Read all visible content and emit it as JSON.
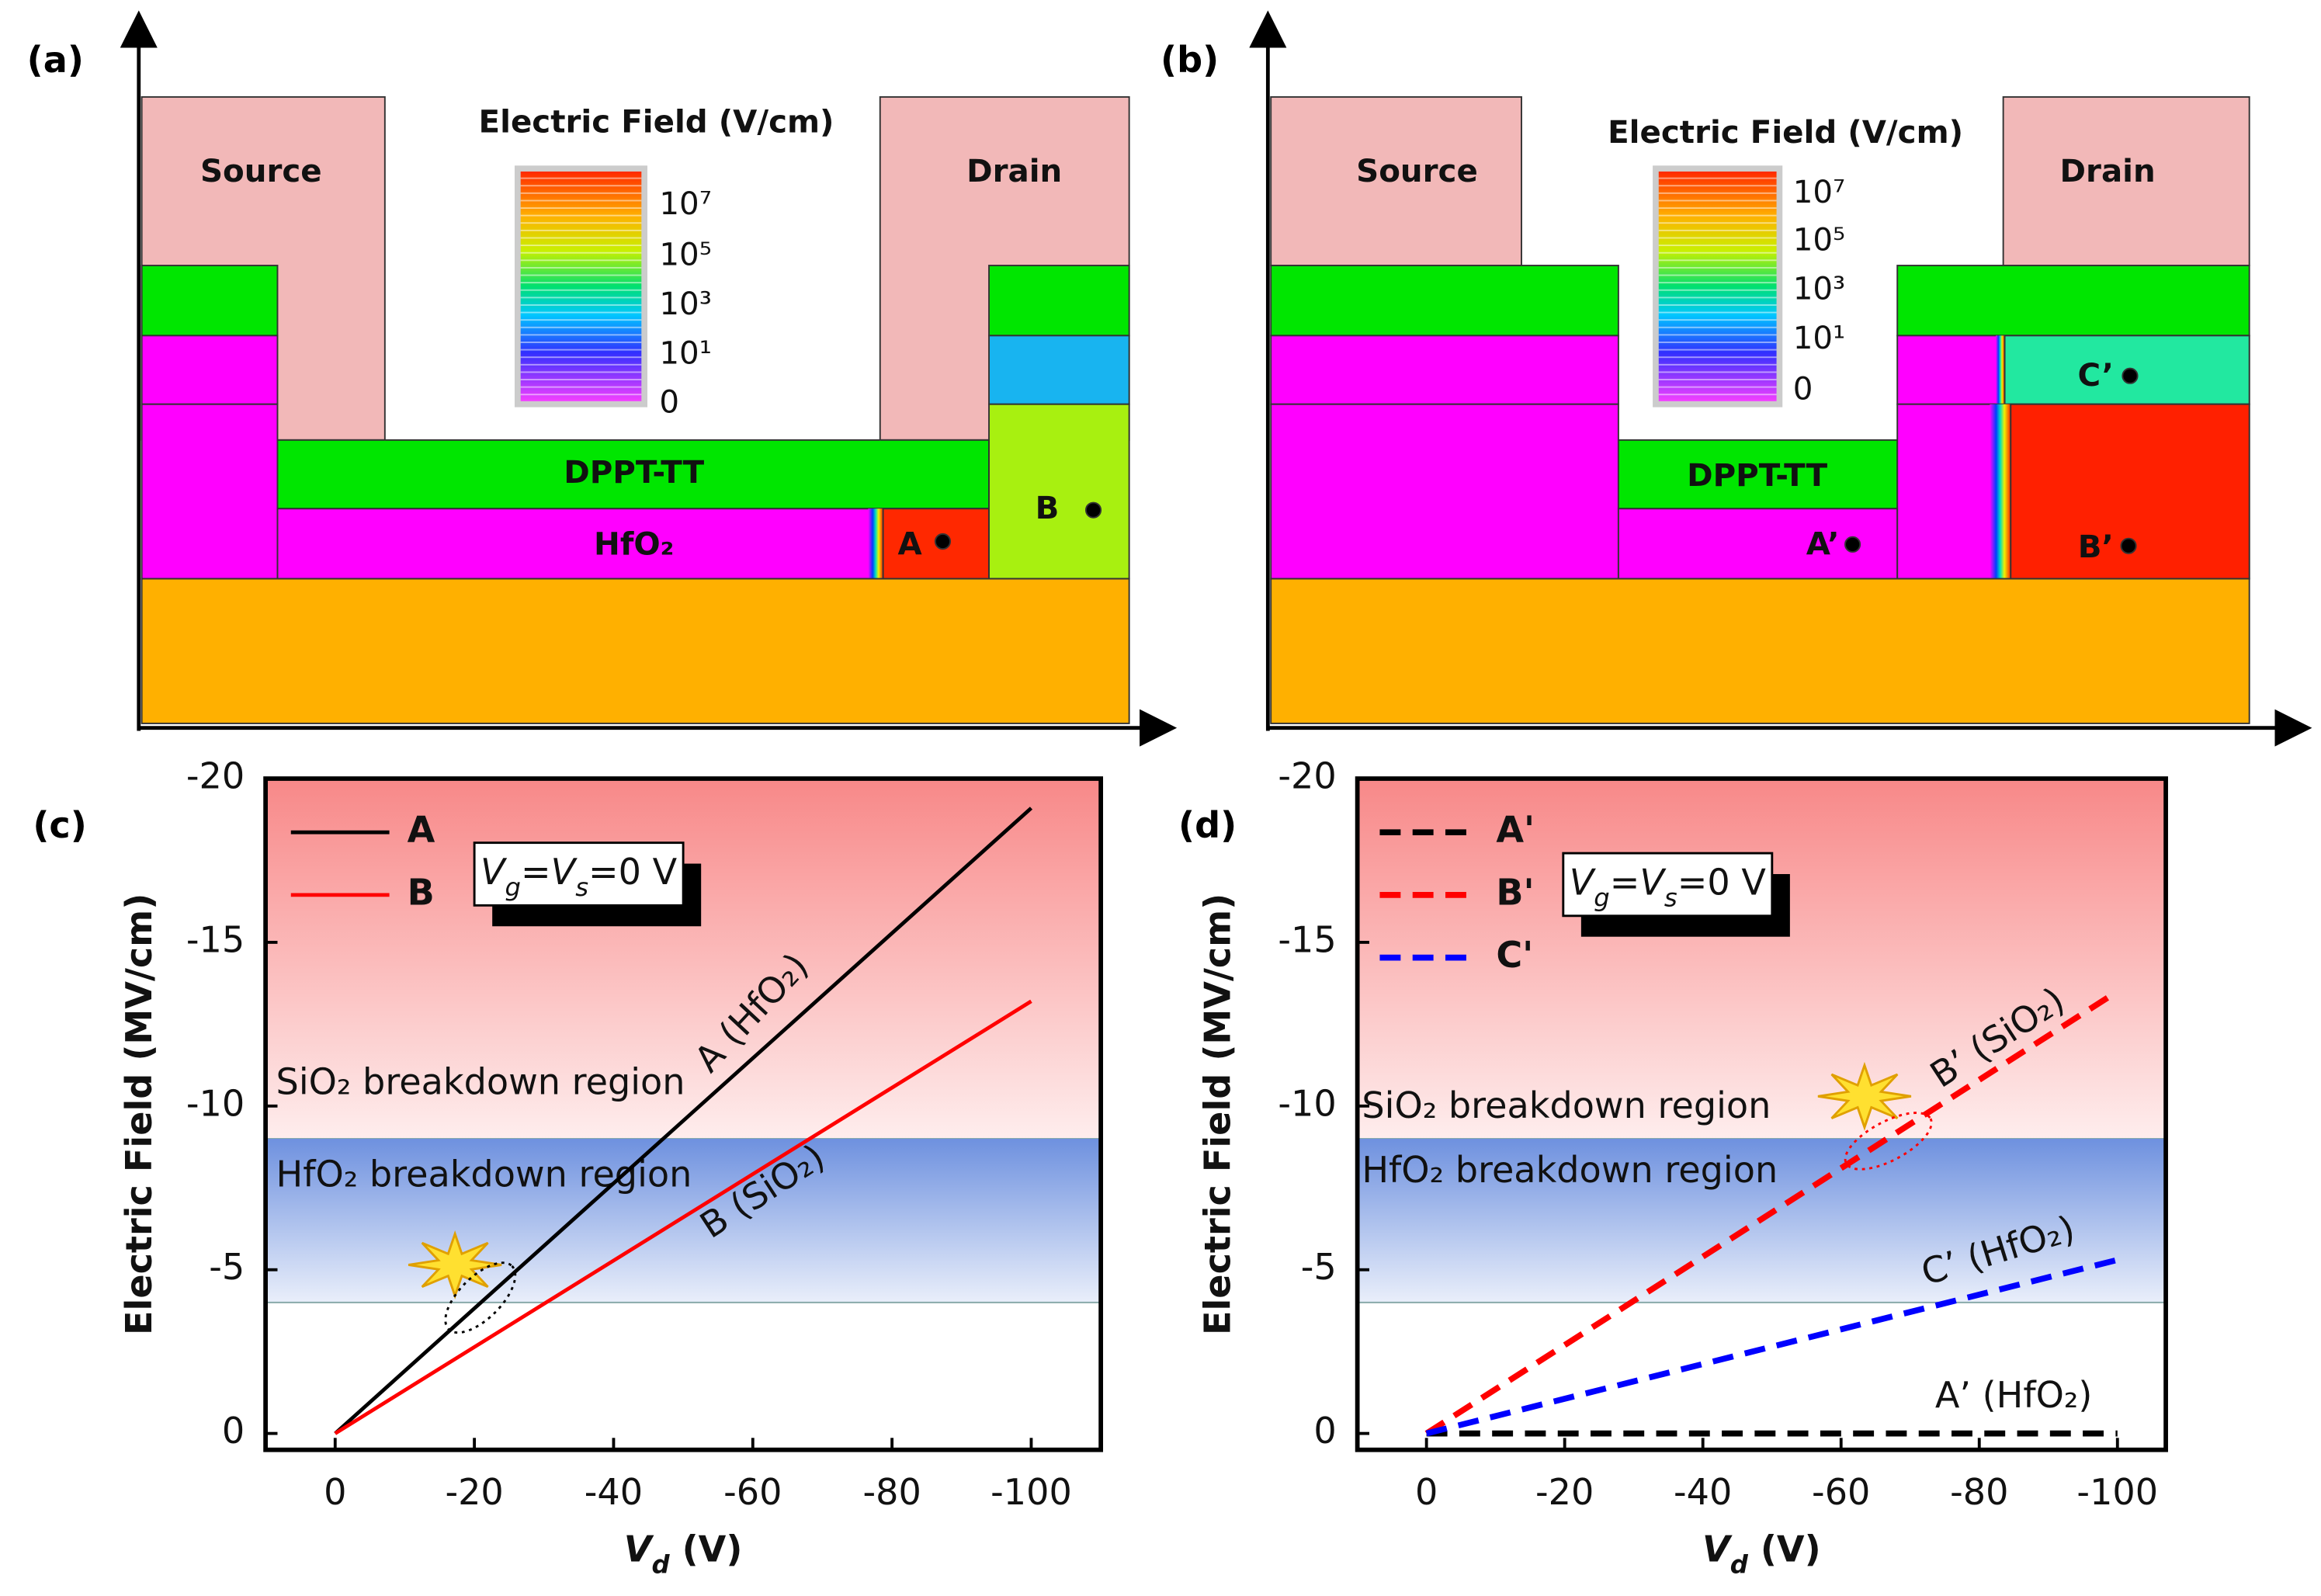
{
  "diagrams": [
    {
      "label": "(a)",
      "colorbar_title": "Electric Field (V/cm)",
      "colorbar_ticks": [
        "10⁷",
        "10⁵",
        "10³",
        "10¹",
        "0"
      ],
      "regions": [
        "Source",
        "Drain",
        "DPPT-TT",
        "HfO₂"
      ],
      "points": [
        "A",
        "B"
      ]
    },
    {
      "label": "(b)",
      "colorbar_title": "Electric Field (V/cm)",
      "colorbar_ticks": [
        "10⁷",
        "10⁵",
        "10³",
        "10¹",
        "0"
      ],
      "regions": [
        "Source",
        "Drain",
        "DPPT-TT"
      ],
      "points": [
        "A’",
        "B’",
        "C’"
      ]
    }
  ],
  "chart_data": [
    {
      "type": "line",
      "panel_label": "(c)",
      "ylabel": "Electric Field (MV/cm)",
      "xlabel": [
        "V",
        "d",
        " (V)"
      ],
      "condition": [
        "V",
        "g",
        "=V",
        "s",
        "=0 V"
      ],
      "x": [
        0,
        -100
      ],
      "xlim": [
        10,
        -110
      ],
      "xticks": [
        0,
        -20,
        -40,
        -60,
        -80,
        -100
      ],
      "ylim": [
        0.5,
        -20
      ],
      "yticks": [
        0,
        -5,
        -10,
        -15,
        -20
      ],
      "grid": false,
      "legend": "upper left",
      "series": [
        {
          "name": "A",
          "color": "#000000",
          "linestyle": "solid",
          "values": [
            0,
            -19.1
          ]
        },
        {
          "name": "B",
          "color": "#ff0000",
          "linestyle": "solid",
          "values": [
            0,
            -13.2
          ]
        }
      ],
      "regions": [
        {
          "label": "SiO₂ breakdown region",
          "range": [
            -9,
            -20
          ],
          "color": "#f88888"
        },
        {
          "label": "HfO₂ breakdown region",
          "range": [
            -4,
            -9
          ],
          "color": "#6e91df"
        }
      ],
      "annotations": [
        "A (HfO₂)",
        "B (SiO₂)"
      ]
    },
    {
      "type": "line",
      "panel_label": "(d)",
      "ylabel": "Electric Field (MV/cm)",
      "xlabel": [
        "V",
        "d",
        " (V)"
      ],
      "condition": [
        "V",
        "g",
        "=V",
        "s",
        "=0 V"
      ],
      "x": [
        0,
        -100
      ],
      "xlim": [
        10,
        -107
      ],
      "xticks": [
        0,
        -20,
        -40,
        -60,
        -80,
        -100
      ],
      "ylim": [
        0.5,
        -20
      ],
      "yticks": [
        0,
        -5,
        -10,
        -15,
        -20
      ],
      "grid": false,
      "legend": "upper left",
      "series": [
        {
          "name": "A'",
          "color": "#000000",
          "linestyle": "dashed",
          "values": [
            0,
            0
          ]
        },
        {
          "name": "B'",
          "color": "#ff0000",
          "linestyle": "dashed",
          "values": [
            0,
            -13.5
          ]
        },
        {
          "name": "C'",
          "color": "#0000ff",
          "linestyle": "dashed",
          "values": [
            0,
            -5.3
          ]
        }
      ],
      "regions": [
        {
          "label": "SiO₂ breakdown region",
          "range": [
            -9,
            -20
          ],
          "color": "#f88888"
        },
        {
          "label": "HfO₂ breakdown region",
          "range": [
            -4,
            -9
          ],
          "color": "#6e91df"
        }
      ],
      "annotations": [
        "B’ (SiO₂)",
        "C’ (HfO₂)",
        "A’ (HfO₂)"
      ]
    }
  ]
}
